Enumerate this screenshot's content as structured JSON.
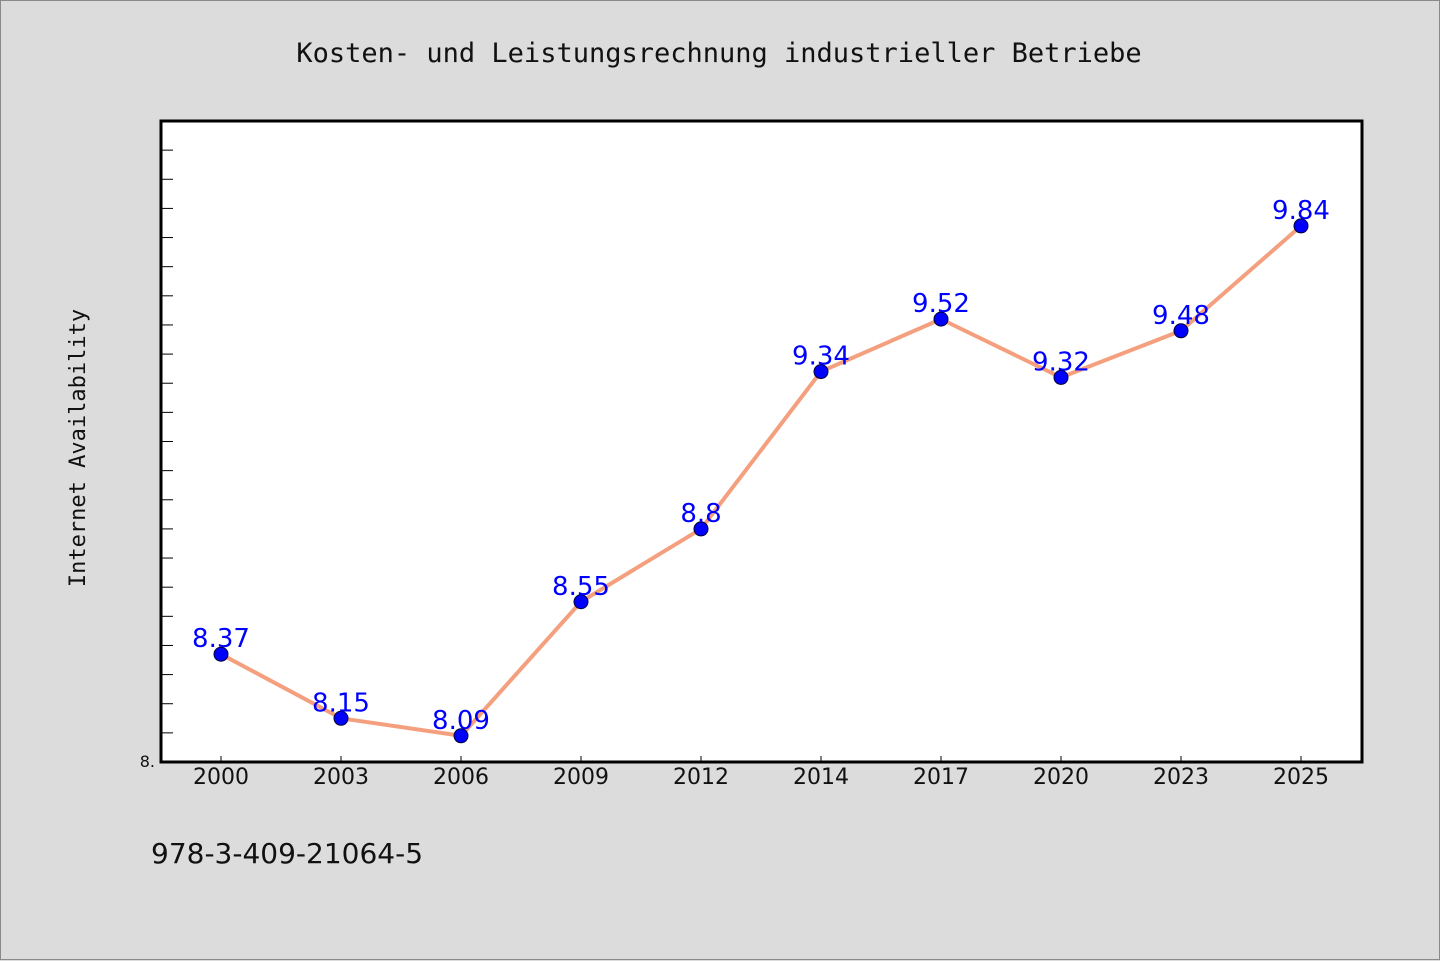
{
  "chart_data": {
    "type": "line",
    "title": "Kosten- und Leistungsrechnung industrieller Betriebe",
    "xlabel": "",
    "ylabel": "Internet Availability",
    "categories": [
      "2000",
      "2003",
      "2006",
      "2009",
      "2012",
      "2014",
      "2017",
      "2020",
      "2023",
      "2025"
    ],
    "series": [
      {
        "values": [
          8.37,
          8.15,
          8.09,
          8.55,
          8.8,
          9.34,
          9.52,
          9.32,
          9.48,
          9.84
        ]
      }
    ],
    "data_labels": [
      "8.37",
      "8.15",
      "8.09",
      "8.55",
      "8.8",
      "9.34",
      "9.52",
      "9.32",
      "9.48",
      "9.84"
    ],
    "ylim": [
      8.0,
      10.2
    ],
    "y_axis_label_min": "8.",
    "grid": false,
    "colors": {
      "line": "#f4a07f",
      "marker": "#0000ff",
      "labels": "#0000ff"
    }
  },
  "footer": {
    "isbn": "978-3-409-21064-5"
  }
}
